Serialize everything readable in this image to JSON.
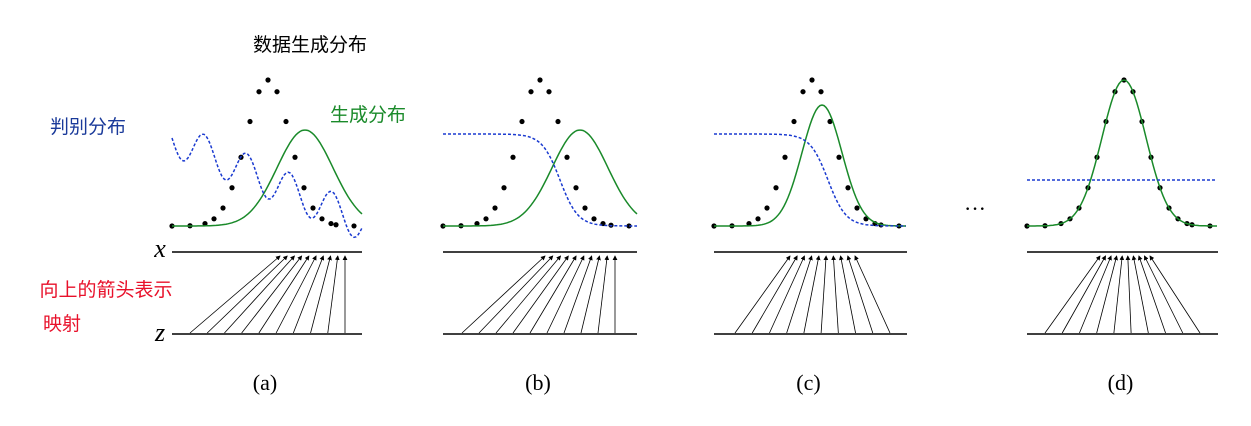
{
  "labels": {
    "data_distribution": "数据生成分布",
    "discriminator": "判别分布",
    "generator": "生成分布",
    "arrow_note_1": "向上的箭头表示",
    "arrow_note_2": "映射"
  },
  "axes": {
    "x": "x",
    "z": "z"
  },
  "panels": [
    "(a)",
    "(b)",
    "(c)",
    "(d)"
  ],
  "ellipsis": "···"
}
